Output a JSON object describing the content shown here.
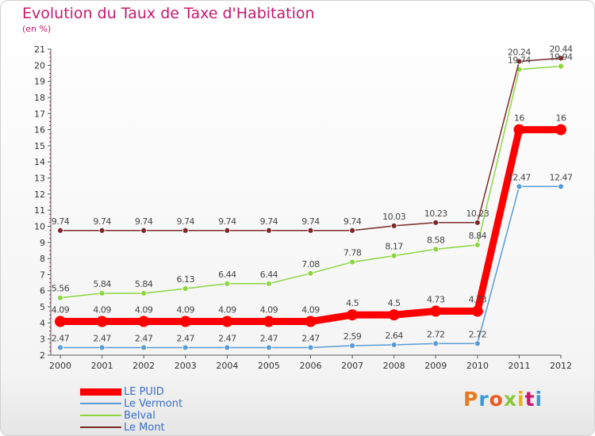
{
  "title": "Evolution du Taux de Taxe d'Habitation",
  "unit": "(en %)",
  "logo": {
    "text": "Proxiti",
    "colors": [
      "#e87a1e",
      "#3a9ad9",
      "#e85a1e",
      "#8cc63f",
      "#e8b21e",
      "#c8186e",
      "#3a9ad9"
    ]
  },
  "chart_data": {
    "type": "line",
    "categories": [
      "2000",
      "2001",
      "2002",
      "2003",
      "2004",
      "2005",
      "2006",
      "2007",
      "2008",
      "2009",
      "2010",
      "2011",
      "2012"
    ],
    "ylim": [
      2,
      21
    ],
    "yticks": [
      "2",
      "3",
      "4",
      "5",
      "6",
      "7",
      "8",
      "9",
      "10",
      "11",
      "12",
      "13",
      "14",
      "15",
      "16",
      "17",
      "18",
      "19",
      "20",
      "21"
    ],
    "grid": false,
    "legend_position": "bottom-left",
    "series": [
      {
        "name": "LE PUID",
        "color": "#ff0000",
        "values": [
          4.09,
          4.09,
          4.09,
          4.09,
          4.09,
          4.09,
          4.09,
          4.5,
          4.5,
          4.73,
          4.73,
          16,
          16
        ],
        "labels": [
          "4.09",
          "4.09",
          "4.09",
          "4.09",
          "4.09",
          "4.09",
          "4.09",
          "4.5",
          "4.5",
          "4.73",
          "4.73",
          "16",
          "16"
        ]
      },
      {
        "name": "Le Vermont",
        "color": "#5b9bd5",
        "values": [
          2.47,
          2.47,
          2.47,
          2.47,
          2.47,
          2.47,
          2.47,
          2.59,
          2.64,
          2.72,
          2.72,
          12.47,
          12.47
        ],
        "labels": [
          "2.47",
          "2.47",
          "2.47",
          "2.47",
          "2.47",
          "2.47",
          "2.47",
          "2.59",
          "2.64",
          "2.72",
          "2.72",
          "12.47",
          "12.47"
        ]
      },
      {
        "name": "Belval",
        "color": "#8cd640",
        "values": [
          5.56,
          5.84,
          5.84,
          6.13,
          6.44,
          6.44,
          7.08,
          7.78,
          8.17,
          8.58,
          8.84,
          19.74,
          19.94
        ],
        "labels": [
          "5.56",
          "5.84",
          "5.84",
          "6.13",
          "6.44",
          "6.44",
          "7.08",
          "7.78",
          "8.17",
          "8.58",
          "8.84",
          "19.74",
          "19.94"
        ]
      },
      {
        "name": "Le Mont",
        "color": "#7a2a2a",
        "values": [
          9.74,
          9.74,
          9.74,
          9.74,
          9.74,
          9.74,
          9.74,
          9.74,
          10.03,
          10.23,
          10.23,
          20.24,
          20.44
        ],
        "labels": [
          "9.74",
          "9.74",
          "9.74",
          "9.74",
          "9.74",
          "9.74",
          "9.74",
          "9.74",
          "10.03",
          "10.23",
          "10.23",
          "20.24",
          "20.44"
        ]
      }
    ]
  }
}
